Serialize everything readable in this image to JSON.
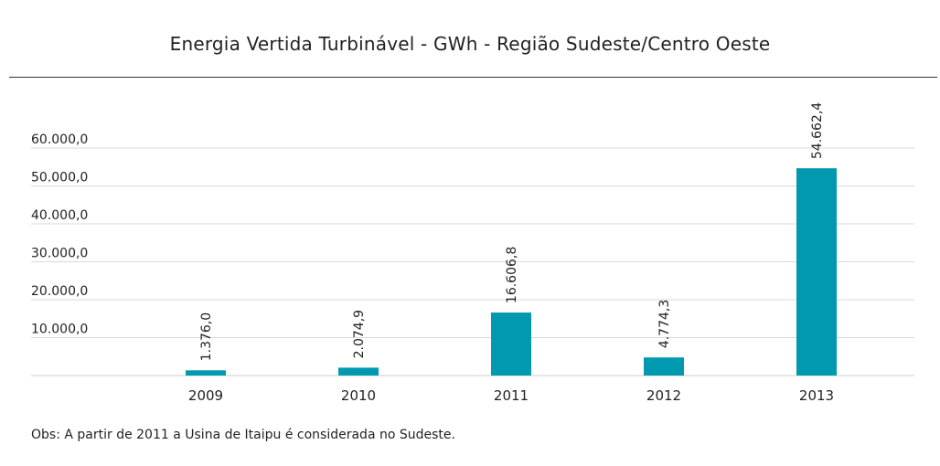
{
  "title": "Energia Vertida Turbinável - GWh - Região Sudeste/Centro Oeste",
  "note": "Obs: A partir de 2011 a Usina de Itaipu é considerada no Sudeste.",
  "colors": {
    "bar": "#0099b0",
    "grid": "#d9d9d9",
    "axis": "#cccccc"
  },
  "chart_data": {
    "type": "bar",
    "title": "Energia Vertida Turbinável - GWh - Região Sudeste/Centro Oeste",
    "xlabel": "",
    "ylabel": "",
    "categories": [
      "2009",
      "2010",
      "2011",
      "2012",
      "2013"
    ],
    "values": [
      1376.0,
      2074.9,
      16606.8,
      4774.3,
      54662.4
    ],
    "value_labels": [
      "1.376,0",
      "2.074,9",
      "16.606,8",
      "4.774,3",
      "54.662,4"
    ],
    "yticks": [
      10000,
      20000,
      30000,
      40000,
      50000,
      60000
    ],
    "ytick_labels": [
      "10.000,0",
      "20.000,0",
      "30.000,0",
      "40.000,0",
      "50.000,0",
      "60.000,0"
    ],
    "ylim": [
      0,
      60000
    ],
    "grid": true,
    "legend": "none"
  }
}
